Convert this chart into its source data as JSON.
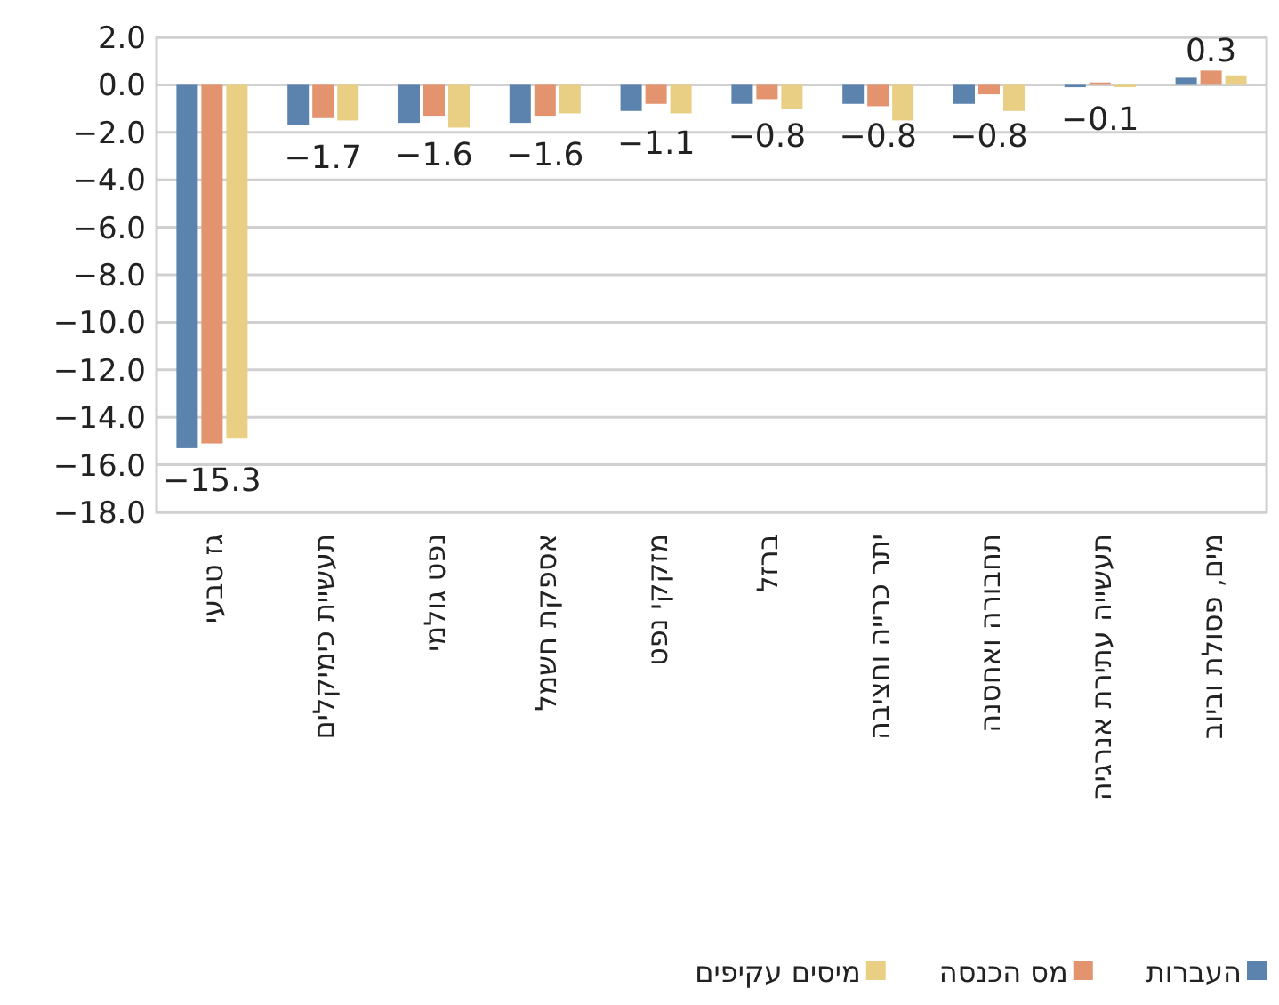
{
  "chart_data": {
    "type": "bar",
    "categories": [
      "גז טבעי",
      "תעשיית כימיקלים",
      "נפט גולמי",
      "אספקת חשמל",
      "מזקקי נפט",
      "ברזל",
      "יתר כרייה וחציבה",
      "תחבורה ואחסנה",
      "תעשייה עתירת אנרגיה",
      "מים, פסולת וביוב"
    ],
    "series": [
      {
        "name": "העברות",
        "color": "#5b83ad",
        "values": [
          -15.3,
          -1.7,
          -1.6,
          -1.6,
          -1.1,
          -0.8,
          -0.8,
          -0.8,
          -0.1,
          0.3
        ],
        "value_labels": [
          "−15.3",
          "−1.7",
          "−1.6",
          "−1.6",
          "−1.1",
          "−0.8",
          "−0.8",
          "−0.8",
          "−0.1",
          "0.3"
        ]
      },
      {
        "name": "מס הכנסה",
        "color": "#e4936f",
        "values": [
          -15.1,
          -1.4,
          -1.3,
          -1.3,
          -0.8,
          -0.6,
          -0.9,
          -0.4,
          0.1,
          0.6
        ]
      },
      {
        "name": "מיסים עקיפים",
        "color": "#e9cf84",
        "values": [
          -14.9,
          -1.5,
          -1.8,
          -1.2,
          -1.2,
          -1.0,
          -1.5,
          -1.1,
          -0.1,
          0.4
        ]
      }
    ],
    "ylim": [
      -18,
      2
    ],
    "yticks": [
      {
        "value": 2,
        "label": "2.0"
      },
      {
        "value": 0,
        "label": "0.0"
      },
      {
        "value": -2,
        "label": "−2.0"
      },
      {
        "value": -4,
        "label": "−4.0"
      },
      {
        "value": -6,
        "label": "−6.0"
      },
      {
        "value": -8,
        "label": "−8.0"
      },
      {
        "value": -10,
        "label": "−10.0"
      },
      {
        "value": -12,
        "label": "−12.0"
      },
      {
        "value": -14,
        "label": "−14.0"
      },
      {
        "value": -16,
        "label": "−16.0"
      },
      {
        "value": -18,
        "label": "−18.0"
      }
    ],
    "grid": "y",
    "legend": "bottom"
  }
}
